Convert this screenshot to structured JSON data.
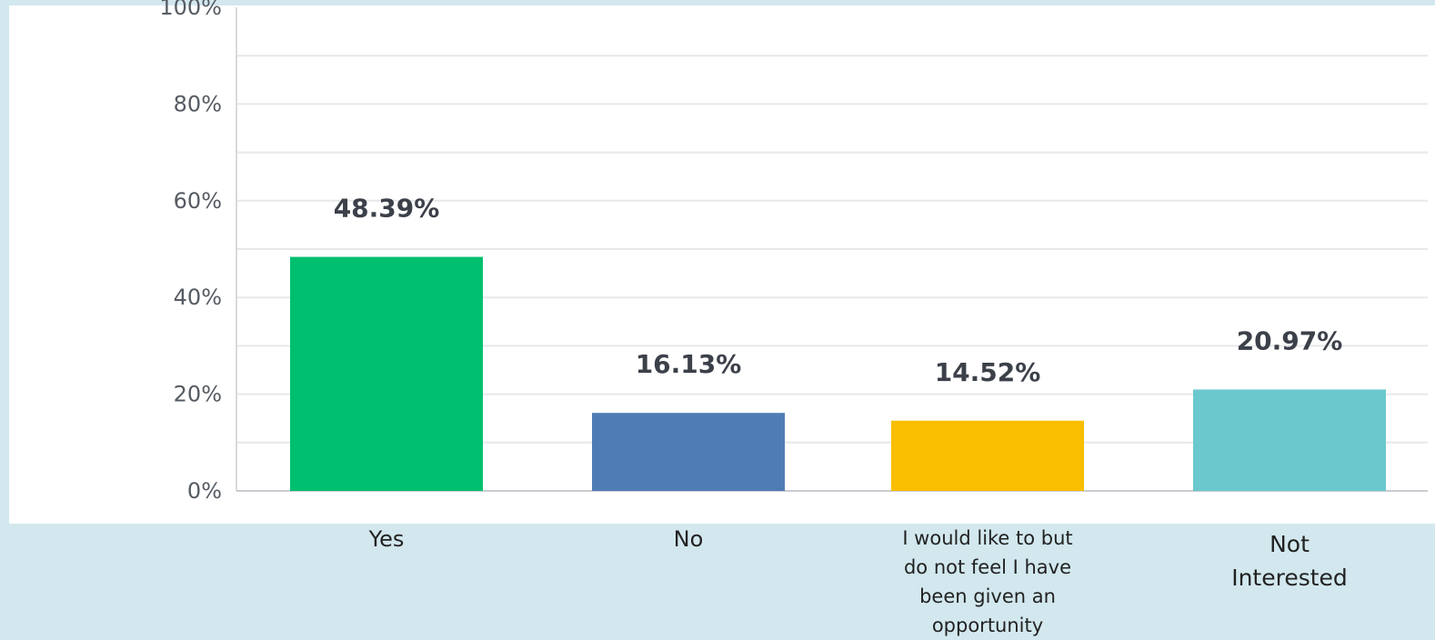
{
  "chart_data": {
    "type": "bar",
    "categories": [
      "Yes",
      "No",
      "I would like to but do not feel I have been given an opportunity",
      "Not Interested"
    ],
    "category_lines": [
      [
        "Yes"
      ],
      [
        "No"
      ],
      [
        "I would like to but",
        "do not feel I have",
        "been given an",
        "opportunity"
      ],
      [
        "Not",
        "Interested"
      ]
    ],
    "values": [
      48.39,
      16.13,
      14.52,
      20.97
    ],
    "data_labels": [
      "48.39%",
      "16.13%",
      "14.52%",
      "20.97%"
    ],
    "colors": [
      "#00bf6f",
      "#507cb6",
      "#f9be00",
      "#6bc8cd"
    ],
    "yticks": [
      "0%",
      "20%",
      "40%",
      "60%",
      "80%",
      "100%"
    ],
    "ylim": [
      0,
      100
    ],
    "grid": true
  }
}
